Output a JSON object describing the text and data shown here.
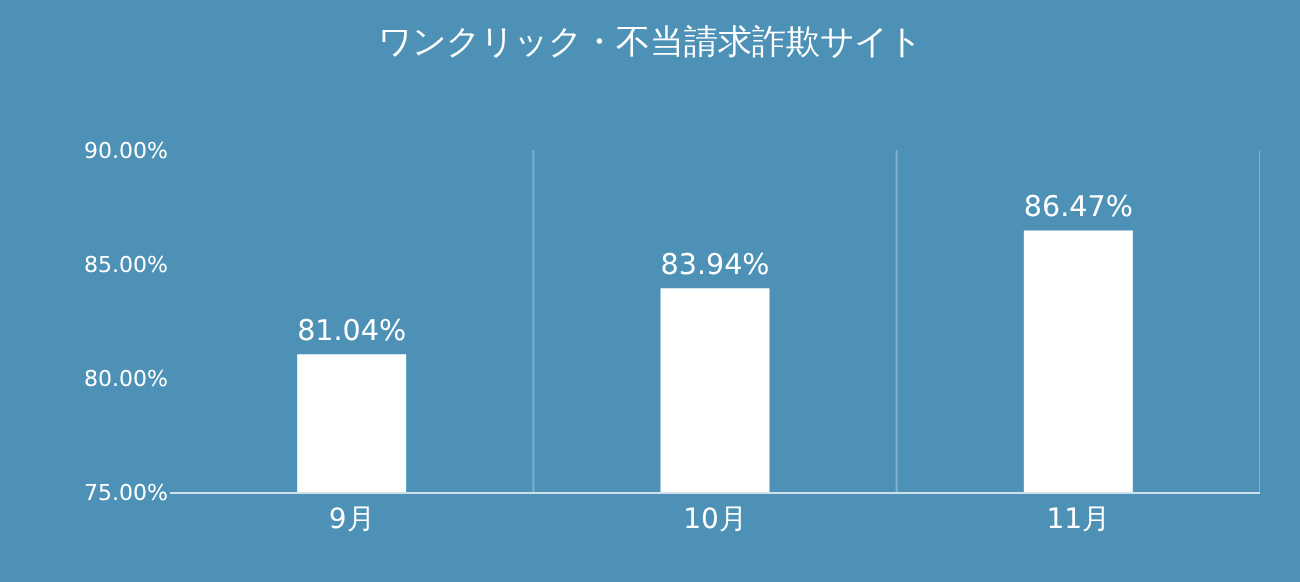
{
  "chart_data": {
    "type": "bar",
    "title": "ワンクリック・不当請求詐欺サイト",
    "categories": [
      "9月",
      "10月",
      "11月"
    ],
    "values": [
      81.04,
      83.94,
      86.47
    ],
    "value_labels": [
      "81.04%",
      "83.94%",
      "86.47%"
    ],
    "color": "#ffffff",
    "ylim": [
      75,
      90
    ],
    "yticks": [
      {
        "value": 75,
        "label": "75.00%"
      },
      {
        "value": 80,
        "label": "80.00%"
      },
      {
        "value": 85,
        "label": "85.00%"
      },
      {
        "value": 90,
        "label": "90.00%"
      }
    ],
    "grid": "x",
    "legend": false
  }
}
